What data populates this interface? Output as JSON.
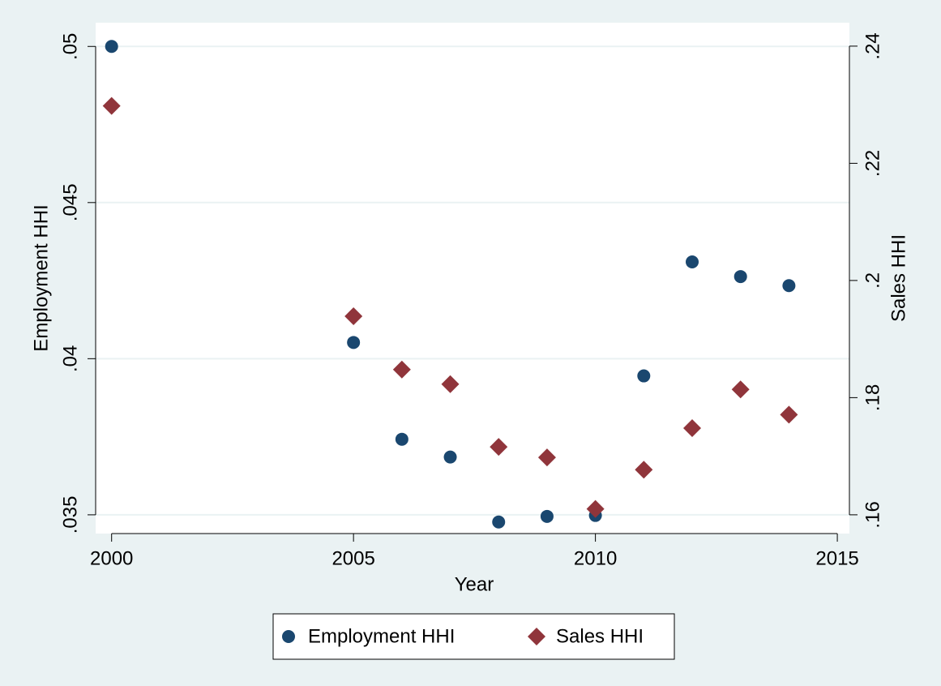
{
  "chart_data": {
    "type": "scatter",
    "x_label": "Year",
    "y_label": "Employment HHI",
    "y2_label": "Sales HHI",
    "x": [
      2000,
      2005,
      2006,
      2007,
      2008,
      2009,
      2010,
      2011,
      2012,
      2013,
      2014
    ],
    "series": [
      {
        "name": "Employment HHI",
        "color": "#1a476f",
        "marker": "circle",
        "values": [
          0.05,
          0.04052,
          0.03742,
          0.03685,
          0.03477,
          0.03495,
          0.03498,
          0.03945,
          0.0431,
          0.04263,
          0.04234
        ]
      },
      {
        "name": "Sales HHI",
        "color": "#90353b",
        "marker": "diamond",
        "axis": "y2",
        "values": [
          0.2298,
          0.1939,
          0.1848,
          0.1823,
          0.1716,
          0.1698,
          0.161,
          0.1677,
          0.1748,
          0.1814,
          0.1771
        ]
      }
    ],
    "xlim": [
      1999.67,
      2015.25
    ],
    "xticks": [
      2000,
      2005,
      2010,
      2015
    ],
    "ylim": [
      0.0344,
      0.05076
    ],
    "yticks": [
      {
        "value": 0.035,
        "label": ".035"
      },
      {
        "value": 0.04,
        "label": ".04"
      },
      {
        "value": 0.045,
        "label": ".045"
      },
      {
        "value": 0.05,
        "label": ".05"
      }
    ],
    "y2lim": [
      0.1568,
      0.244
    ],
    "y2ticks": [
      {
        "value": 0.16,
        "label": ".16"
      },
      {
        "value": 0.18,
        "label": ".18"
      },
      {
        "value": 0.2,
        "label": ".2"
      },
      {
        "value": 0.22,
        "label": ".22"
      },
      {
        "value": 0.24,
        "label": ".24"
      }
    ],
    "grid": true,
    "legend": "bottom"
  }
}
